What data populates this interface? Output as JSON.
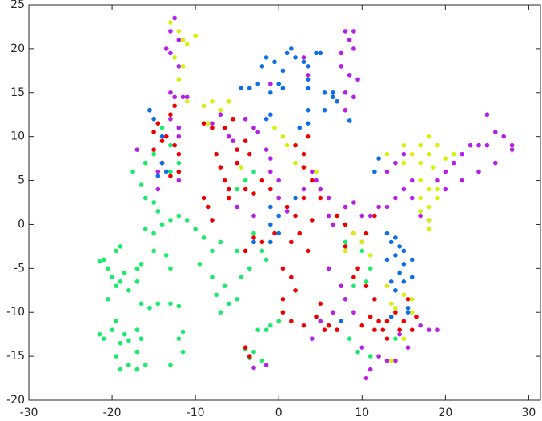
{
  "chart_data": {
    "type": "scatter",
    "xlim": [
      -30,
      31.4
    ],
    "ylim": [
      -20,
      25
    ],
    "xticks": [
      -30,
      -20,
      -10,
      0,
      10,
      20,
      30
    ],
    "yticks": [
      -20,
      -15,
      -10,
      -5,
      0,
      5,
      10,
      15,
      20,
      25
    ],
    "grid": false,
    "series": [
      {
        "color": "#19eb6a",
        "x": [
          -21.5,
          -21,
          -20.5,
          -20,
          -19.5,
          -20.5,
          -19,
          -18.5,
          -18,
          -19.5,
          -19,
          -17,
          -16.5,
          -17,
          -21.5,
          -21,
          -20,
          -19.5,
          -19,
          -18.5,
          -18,
          -17,
          -16.5,
          -17,
          -19.5,
          -18,
          -17,
          -16,
          -19,
          -16.5,
          -15.5,
          -14.5,
          -13,
          -12,
          -11.5,
          -12,
          -11.5,
          -13,
          -17.5,
          -16.5,
          -16,
          -15,
          -14.5,
          -16,
          -15,
          -14,
          -13,
          -12,
          -11,
          -10,
          -9,
          -8,
          -7,
          -15,
          -13.5,
          -13,
          -9.5,
          -8,
          -7.5,
          -6.5,
          -6,
          -7,
          -5,
          -4.5,
          -3.5,
          -5,
          -3,
          -2,
          -1.5,
          -2.5,
          -1.5,
          -1,
          0,
          0.5,
          -3,
          -4,
          -2,
          -3.5,
          -5,
          -4,
          -3,
          -12,
          -13,
          -15,
          -16,
          -13,
          -14,
          8,
          10,
          11,
          10.5,
          9,
          8.5,
          9.5,
          11,
          14
        ],
        "values": [
          -4.2,
          -4,
          -5,
          -6,
          -7,
          -8.5,
          -6.5,
          -5.5,
          -7.5,
          -3,
          -2.5,
          -5,
          -4.5,
          -6.5,
          -12.5,
          -13,
          -12,
          -11,
          -13.5,
          -12.5,
          -13.2,
          -12,
          -13,
          -14.5,
          -15,
          -16,
          -16.5,
          -16,
          -16.5,
          -9,
          -9.5,
          -9,
          -9,
          -9.3,
          -12.2,
          -13,
          -14.5,
          -16,
          6,
          4.5,
          3,
          2.5,
          1.5,
          -0.5,
          -1,
          0,
          0.5,
          1,
          0.5,
          -0.5,
          -1.5,
          -3,
          -2,
          -3,
          -3.5,
          -5,
          -4.5,
          -6,
          -8,
          -7,
          -9,
          -10,
          -8.5,
          -6,
          -5,
          -3,
          -1,
          -3,
          -4,
          -12,
          -12,
          -11.5,
          -11,
          -10,
          -14.5,
          -14.2,
          -15.5,
          -15.2,
          4,
          5,
          6,
          7,
          6,
          8,
          7,
          9,
          11,
          -2,
          -3,
          -5,
          -6.5,
          -7,
          -13,
          -14.5,
          -15,
          -13
        ]
      },
      {
        "color": "#ee0000",
        "x": [
          -15,
          -14.5,
          -14,
          -13.5,
          -15,
          -14,
          -13,
          -12.5,
          -12,
          -12,
          -13,
          -12.5,
          -9,
          -8,
          -7.5,
          -7,
          -6.5,
          -9,
          -8.5,
          -8,
          -6.5,
          -5.5,
          -5,
          -5,
          -4,
          -3.5,
          -6,
          -6,
          -4,
          -3,
          -2,
          -1,
          0,
          1,
          2,
          3,
          4,
          2.5,
          1.5,
          3.5,
          0.5,
          1.5,
          2,
          0.5,
          0.5,
          1.5,
          3,
          4.5,
          5,
          6,
          7,
          5.5,
          -4,
          -3,
          -2,
          -0.5,
          -4,
          -3.5,
          7,
          8,
          9,
          8,
          10,
          9.5,
          9,
          10.5,
          11.5,
          11,
          12,
          12.5,
          13,
          14,
          14.5,
          15,
          16,
          16.5,
          15.5,
          10,
          11.5,
          13,
          10.5,
          11.5,
          2,
          3.5,
          3,
          4,
          5,
          3
        ],
        "values": [
          10.5,
          11.5,
          9.5,
          10,
          8.5,
          7,
          5.5,
          9,
          8,
          6,
          12.5,
          13.5,
          11.5,
          11,
          8,
          6.5,
          5,
          3,
          2,
          0.5,
          11,
          12,
          8.5,
          7,
          9.5,
          8,
          4,
          3,
          4,
          3.5,
          5,
          4,
          3,
          2,
          1,
          3,
          0.5,
          -1,
          -2,
          -3,
          -5,
          -6,
          -7.5,
          -8.5,
          -10,
          -11,
          -11.5,
          -10.5,
          -9,
          -11.5,
          -12,
          -12,
          -3,
          -1.5,
          -2,
          -1,
          -14,
          -15,
          1,
          0,
          -1,
          -2.5,
          -2,
          -5,
          -6,
          -7,
          -8.5,
          -10.5,
          -11,
          -12,
          -11,
          -10,
          -12,
          -11,
          -12,
          -10.5,
          -8.5,
          -11.5,
          -12,
          -13,
          -1,
          1,
          9,
          10,
          6.5,
          5,
          3,
          8
        ]
      },
      {
        "color": "#b61fe8",
        "x": [
          -13,
          -12.5,
          -12,
          -13.5,
          -13,
          -12,
          -13,
          -12.5,
          -11.5,
          -11,
          -13,
          -12,
          -12,
          -17,
          -14.5,
          -14.5,
          -12,
          -8,
          -7,
          -6,
          -5.5,
          -4,
          -3,
          -2.5,
          -1.5,
          -1,
          -1,
          0,
          0,
          1,
          3,
          4.5,
          5,
          4,
          6,
          -5,
          -3,
          8,
          8.5,
          9,
          9,
          7.5,
          7.5,
          8.5,
          9.5,
          8,
          7,
          8,
          9,
          3,
          3.5,
          -1,
          6,
          6.5,
          8,
          9,
          10,
          11,
          12,
          13,
          14,
          15,
          16,
          13,
          14,
          15,
          19,
          20,
          21,
          22,
          23,
          24,
          25,
          25,
          26,
          27,
          28,
          28,
          24,
          26,
          22,
          20,
          17,
          18,
          16,
          6,
          7.5,
          8,
          9,
          10,
          11,
          10.5,
          12,
          13,
          14,
          17,
          18,
          19,
          5,
          6.5,
          -3,
          -1.5,
          4,
          14.5,
          15.5
        ],
        "values": [
          22,
          23.5,
          21,
          20,
          19.5,
          18,
          15,
          14.5,
          14.5,
          14.5,
          12,
          11,
          10,
          8.5,
          4,
          6,
          5,
          11.5,
          12.5,
          10,
          9.5,
          12,
          11,
          10.5,
          8.5,
          7.5,
          6,
          5,
          3,
          1.5,
          4,
          5,
          4,
          6,
          3,
          2,
          1,
          22,
          21,
          22,
          20,
          19.5,
          18,
          17,
          16.5,
          15,
          14,
          13,
          14.5,
          19,
          17,
          16,
          1,
          0,
          2,
          2.5,
          1,
          1,
          2,
          2,
          3,
          4,
          5,
          6,
          7,
          8,
          5,
          6,
          7,
          8,
          9,
          9,
          9,
          12.5,
          10.5,
          10,
          9,
          8.5,
          6,
          7,
          5,
          4,
          1,
          0.5,
          3,
          -5,
          -7,
          -8.5,
          -10,
          -14,
          -16.5,
          -17.5,
          -15,
          -15.5,
          -15.5,
          -11.5,
          -12,
          -12,
          -11,
          -10,
          -16.3,
          -16,
          -13,
          -12.5,
          -14
        ]
      },
      {
        "color": "#d6f00a",
        "x": [
          -12,
          -11.5,
          -11,
          -12.5,
          -11.5,
          -12,
          -11,
          -10,
          -13,
          -9,
          -8,
          -6,
          -7,
          -8.5,
          -0.5,
          0.5,
          1,
          2,
          4.5,
          -4.5,
          15,
          16,
          17,
          18,
          19,
          18,
          17,
          18.5,
          17,
          18,
          17,
          18,
          17,
          19,
          18,
          18,
          19,
          20,
          21,
          13,
          15,
          13,
          13.5,
          14,
          15,
          16,
          16,
          8,
          9,
          10,
          11,
          15,
          13.5
        ],
        "values": [
          22,
          21,
          20.5,
          19,
          18,
          16.5,
          14,
          21.5,
          23,
          13.5,
          14,
          14,
          13,
          11.5,
          11,
          10,
          9,
          7,
          6,
          6.5,
          7,
          8,
          9,
          10,
          9,
          8,
          7,
          6.5,
          5,
          4,
          3,
          2,
          1.5,
          3,
          0.5,
          -0.5,
          4,
          7.5,
          8,
          8,
          9,
          -7,
          -9,
          -9.5,
          -8,
          -8.5,
          -10,
          -3,
          -1,
          -2,
          -3.5,
          -13,
          -15.5
        ]
      },
      {
        "color": "#0d6ee8",
        "x": [
          -15.5,
          -15,
          -14,
          -14.5,
          -13.5,
          -14,
          -2,
          -1.5,
          -0.5,
          0.5,
          1,
          1.5,
          2,
          3,
          3.5,
          4.5,
          5,
          0,
          0.5,
          -1,
          -2.5,
          -3.5,
          -4.5,
          3.5,
          3.5,
          5.5,
          6.5,
          7,
          5.5,
          3.5,
          3.5,
          2.5,
          -1.5,
          -1,
          8.5,
          6.5,
          12,
          11.5,
          -1,
          0,
          -1,
          0,
          2,
          -1,
          -3,
          13,
          13.5,
          14,
          14.5,
          14,
          15,
          15,
          14.5,
          16,
          13.5,
          14,
          15,
          15.5,
          15.5,
          13.5,
          7.5,
          13,
          16
        ],
        "values": [
          13,
          12,
          7,
          5.5,
          6,
          10,
          18,
          19,
          18.5,
          17.5,
          19.5,
          20,
          19,
          18.5,
          18,
          19.5,
          19.5,
          16,
          15.5,
          15,
          16,
          15.5,
          15.5,
          16.5,
          15.5,
          15,
          15,
          14,
          13,
          13,
          11.5,
          11,
          12,
          12.5,
          11.8,
          14.5,
          7.5,
          6,
          2,
          1,
          0,
          -1,
          3,
          -2,
          -2,
          -1,
          -2,
          -1.5,
          -2.5,
          -3.5,
          -3,
          -4.5,
          -5.5,
          -6,
          -6.5,
          -7.5,
          -6.5,
          -9.5,
          -10,
          -10.5,
          -11,
          -4,
          -4
        ]
      }
    ]
  }
}
